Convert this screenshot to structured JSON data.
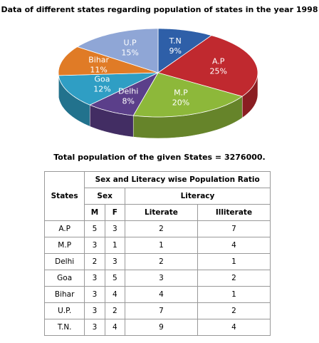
{
  "chart_data": {
    "type": "pie",
    "title": "Data of different states regarding population of states in the year 1998",
    "categories": [
      "T.N",
      "A.P",
      "M.P",
      "Delhi",
      "Goa",
      "Bihar",
      "U.P"
    ],
    "values": [
      9,
      25,
      20,
      8,
      12,
      11,
      15
    ],
    "value_labels": [
      "9%",
      "25%",
      "20%",
      "8%",
      "12%",
      "11%",
      "15%"
    ],
    "colors": [
      "#2e5fa8",
      "#c0292f",
      "#8db83a",
      "#5b3f8a",
      "#2f9ec4",
      "#e07b26",
      "#8fa6d6"
    ]
  },
  "note": "Total population of the given States = 3276000.",
  "table": {
    "header": {
      "states": "States",
      "group": "Sex and Literacy wise Population Ratio",
      "sex": "Sex",
      "literacy": "Literacy",
      "columns": [
        "M",
        "F",
        "Literate",
        "Illiterate"
      ]
    },
    "rows": [
      [
        "A.P",
        5,
        3,
        2,
        7
      ],
      [
        "M.P",
        3,
        1,
        1,
        4
      ],
      [
        "Delhi",
        2,
        3,
        2,
        1
      ],
      [
        "Goa",
        3,
        5,
        3,
        2
      ],
      [
        "Bihar",
        3,
        4,
        4,
        1
      ],
      [
        "U.P.",
        3,
        2,
        7,
        2
      ],
      [
        "T.N.",
        3,
        4,
        9,
        4
      ]
    ]
  }
}
